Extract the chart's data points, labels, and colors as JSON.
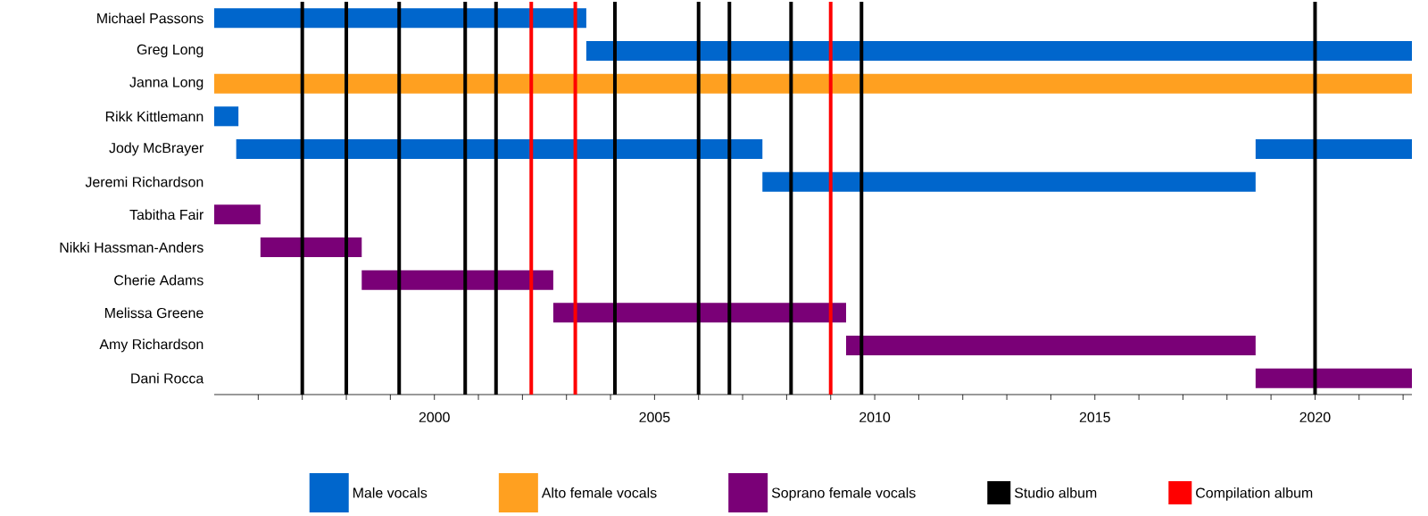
{
  "chart_data": {
    "type": "bar",
    "orientation": "horizontal",
    "categories": [
      "Michael Passons",
      "Greg Long",
      "Janna Long",
      "Rikk Kittlemann",
      "Jody McBrayer",
      "Jeremi Richardson",
      "Tabitha Fair",
      "Nikki Hassman-Anders",
      "Cherie Adams",
      "Melissa Greene",
      "Amy Richardson",
      "Dani Rocca"
    ],
    "series": [
      {
        "name": "Male vocals",
        "color": "#0066cc",
        "base": [
          1995.0,
          2003.45,
          null,
          1995.0,
          1995.5,
          2007.45,
          null,
          null,
          null,
          null,
          null,
          null
        ],
        "values": [
          8.45,
          18.75,
          null,
          0.55,
          11.95,
          11.2,
          null,
          null,
          null,
          null,
          null,
          null
        ]
      },
      {
        "name": "Alto female vocals",
        "color": "#ffa020",
        "base": [
          null,
          null,
          1995.0,
          null,
          null,
          null,
          null,
          null,
          null,
          null,
          null,
          null
        ],
        "values": [
          null,
          null,
          27.2,
          null,
          null,
          null,
          null,
          null,
          null,
          null,
          null,
          null
        ]
      },
      {
        "name": "Soprano female vocals",
        "color": "#7a0077",
        "base": [
          null,
          null,
          null,
          null,
          null,
          null,
          1995.0,
          1996.05,
          1998.35,
          2002.7,
          2009.35,
          2018.65
        ],
        "values": [
          null,
          null,
          null,
          null,
          null,
          null,
          1.05,
          2.3,
          4.35,
          6.65,
          9.3,
          3.55
        ]
      },
      {
        "color": "#0066cc",
        "base": [
          null,
          null,
          null,
          null,
          2018.65,
          null,
          null,
          null,
          null,
          null,
          null,
          null
        ],
        "values": [
          null,
          null,
          null,
          null,
          3.55,
          null,
          null,
          null,
          null,
          null,
          null,
          null
        ]
      }
    ],
    "xlim": [
      1995.0,
      2022.2
    ],
    "xticks": [
      {
        "value": 1996,
        "label": null
      },
      {
        "value": 1997,
        "label": null
      },
      {
        "value": 1998,
        "label": null
      },
      {
        "value": 1999,
        "label": null
      },
      2000,
      {
        "value": 2001,
        "label": null
      },
      {
        "value": 2002,
        "label": null
      },
      {
        "value": 2003,
        "label": null
      },
      {
        "value": 2004,
        "label": null
      },
      2005,
      {
        "value": 2006,
        "label": null
      },
      {
        "value": 2007,
        "label": null
      },
      {
        "value": 2008,
        "label": null
      },
      {
        "value": 2009,
        "label": null
      },
      2010,
      {
        "value": 2011,
        "label": null
      },
      {
        "value": 2012,
        "label": null
      },
      {
        "value": 2013,
        "label": null
      },
      {
        "value": 2014,
        "label": null
      },
      2015,
      {
        "value": 2016,
        "label": null
      },
      {
        "value": 2017,
        "label": null
      },
      {
        "value": 2018,
        "label": null
      },
      {
        "value": 2019,
        "label": null
      },
      2020,
      {
        "value": 2021,
        "label": null
      },
      {
        "value": 2022,
        "label": null
      }
    ],
    "ref_lines": [
      {
        "axis": "x",
        "value": 1997.0,
        "label": "Studio album",
        "color": "#000000"
      },
      {
        "axis": "x",
        "value": 1998.0,
        "color": "#000000"
      },
      {
        "axis": "x",
        "value": 1999.2,
        "color": "#000000"
      },
      {
        "axis": "x",
        "value": 2000.7,
        "color": "#000000"
      },
      {
        "axis": "x",
        "value": 2001.4,
        "color": "#000000"
      },
      {
        "axis": "x",
        "value": 2004.1,
        "color": "#000000"
      },
      {
        "axis": "x",
        "value": 2006.0,
        "color": "#000000"
      },
      {
        "axis": "x",
        "value": 2006.7,
        "color": "#000000"
      },
      {
        "axis": "x",
        "value": 2008.1,
        "color": "#000000"
      },
      {
        "axis": "x",
        "value": 2009.7,
        "color": "#000000"
      },
      {
        "axis": "x",
        "value": 2020.0,
        "color": "#000000"
      },
      {
        "axis": "x",
        "value": 2002.2,
        "label": "Compilation album",
        "color": "#ff0000"
      },
      {
        "axis": "x",
        "value": 2003.2,
        "color": "#ff0000"
      },
      {
        "axis": "x",
        "value": 2009.0,
        "color": "#ff0000"
      }
    ],
    "legend": "bottom"
  }
}
